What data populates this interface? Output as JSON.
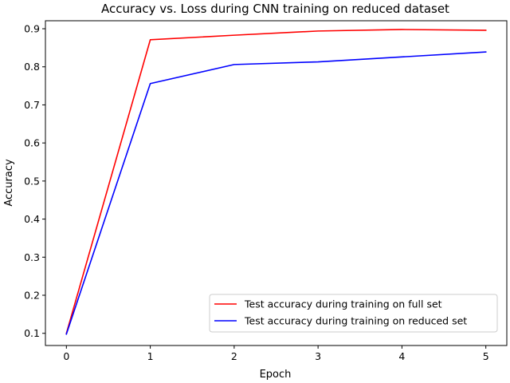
{
  "chart_data": {
    "type": "line",
    "title": "Accuracy vs. Loss during CNN training on reduced dataset",
    "xlabel": "Epoch",
    "ylabel": "Accuracy",
    "x": [
      0,
      1,
      2,
      3,
      4,
      5
    ],
    "xlim": [
      -0.25,
      5.25
    ],
    "ylim": [
      0.068,
      0.921
    ],
    "xticks": [
      0,
      1,
      2,
      3,
      4,
      5
    ],
    "yticks": [
      0.1,
      0.2,
      0.3,
      0.4,
      0.5,
      0.6,
      0.7,
      0.8,
      0.9
    ],
    "grid": false,
    "legend_position": "lower right",
    "series": [
      {
        "name": "Test accuracy during training on full set",
        "color": "#ff0000",
        "values": [
          0.1,
          0.871,
          0.883,
          0.894,
          0.898,
          0.896
        ]
      },
      {
        "name": "Test accuracy during training on reduced set",
        "color": "#0000ff",
        "values": [
          0.098,
          0.756,
          0.806,
          0.813,
          0.826,
          0.839
        ]
      }
    ]
  }
}
